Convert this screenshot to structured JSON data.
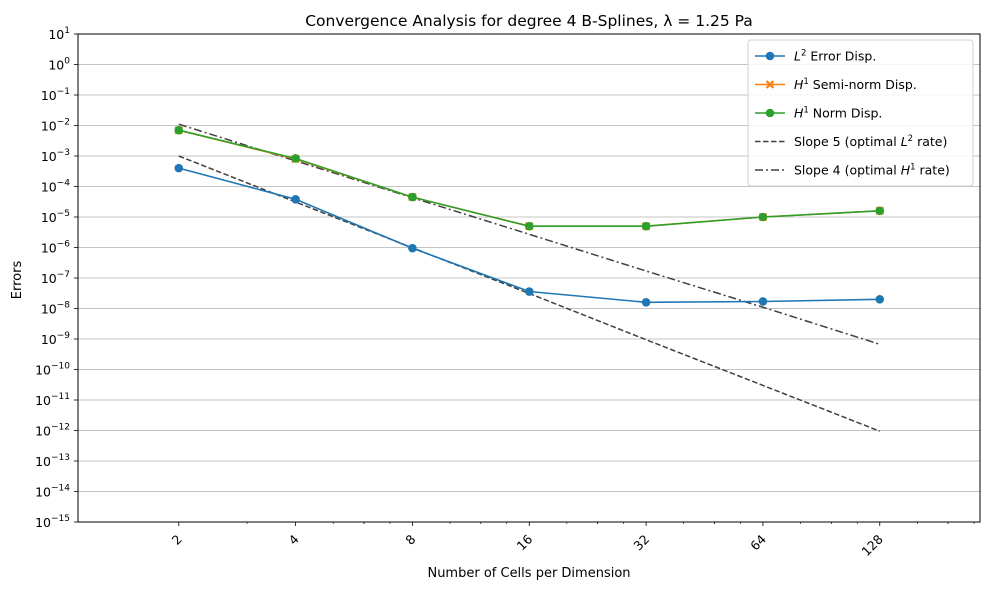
{
  "chart_data": {
    "type": "line",
    "title": "Convergence Analysis for degree 4 B-Splines, λ = 1.25 Pa",
    "xlabel": "Number of Cells per Dimension",
    "ylabel": "Errors",
    "x_scale": "log2",
    "y_scale": "log10",
    "x": [
      2,
      4,
      8,
      16,
      32,
      64,
      128
    ],
    "xticks": [
      "2",
      "4",
      "8",
      "16",
      "32",
      "64",
      "128"
    ],
    "ylim": [
      1e-15,
      10
    ],
    "yticks": [
      {
        "base": "10",
        "exp": "1"
      },
      {
        "base": "10",
        "exp": "0"
      },
      {
        "base": "10",
        "exp": "−1"
      },
      {
        "base": "10",
        "exp": "−2"
      },
      {
        "base": "10",
        "exp": "−3"
      },
      {
        "base": "10",
        "exp": "−4"
      },
      {
        "base": "10",
        "exp": "−5"
      },
      {
        "base": "10",
        "exp": "−6"
      },
      {
        "base": "10",
        "exp": "−7"
      },
      {
        "base": "10",
        "exp": "−8"
      },
      {
        "base": "10",
        "exp": "−9"
      },
      {
        "base": "10",
        "exp": "−10"
      },
      {
        "base": "10",
        "exp": "−11"
      },
      {
        "base": "10",
        "exp": "−12"
      },
      {
        "base": "10",
        "exp": "−13"
      },
      {
        "base": "10",
        "exp": "−14"
      },
      {
        "base": "10",
        "exp": "−15"
      }
    ],
    "grid": "horizontal",
    "legend_position": "top-right",
    "series": [
      {
        "name": "Error Disp.",
        "name_math": {
          "base": "L",
          "sup": "2"
        },
        "color": "#1f77b4",
        "marker": "circle",
        "linestyle": "solid",
        "values": [
          0.0004,
          3.8e-05,
          9.5e-07,
          3.6e-08,
          1.6e-08,
          1.7e-08,
          2e-08
        ]
      },
      {
        "name": "Semi-norm Disp.",
        "name_math": {
          "base": "H",
          "sup": "1"
        },
        "color": "#ff7f0e",
        "marker": "x",
        "linestyle": "solid",
        "values": [
          0.007,
          0.0008,
          4.5e-05,
          5e-06,
          5e-06,
          1e-05,
          1.6e-05
        ]
      },
      {
        "name": "Norm Disp.",
        "name_math": {
          "base": "H",
          "sup": "1"
        },
        "color": "#2ca02c",
        "marker": "circle",
        "linestyle": "solid",
        "values": [
          0.007,
          0.00083,
          4.5e-05,
          5e-06,
          5e-06,
          1e-05,
          1.6e-05
        ]
      },
      {
        "name": "Slope 5 (optimal rate)",
        "label_parts": [
          "Slope 5 (optimal ",
          "L",
          "2",
          " rate)"
        ],
        "color": "#404040",
        "marker": "none",
        "linestyle": "dashed",
        "values": [
          0.001,
          3.1e-05,
          9.8e-07,
          3.1e-08,
          9.5e-10,
          3e-11,
          9.5e-13
        ]
      },
      {
        "name": "Slope 4 (optimal rate)",
        "label_parts": [
          "Slope 4 (optimal ",
          "H",
          "1",
          " rate)"
        ],
        "color": "#404040",
        "marker": "none",
        "linestyle": "dashdot",
        "values": [
          0.011,
          0.00069,
          4.3e-05,
          2.7e-06,
          1.7e-07,
          1.1e-08,
          6.7e-10
        ]
      }
    ]
  }
}
